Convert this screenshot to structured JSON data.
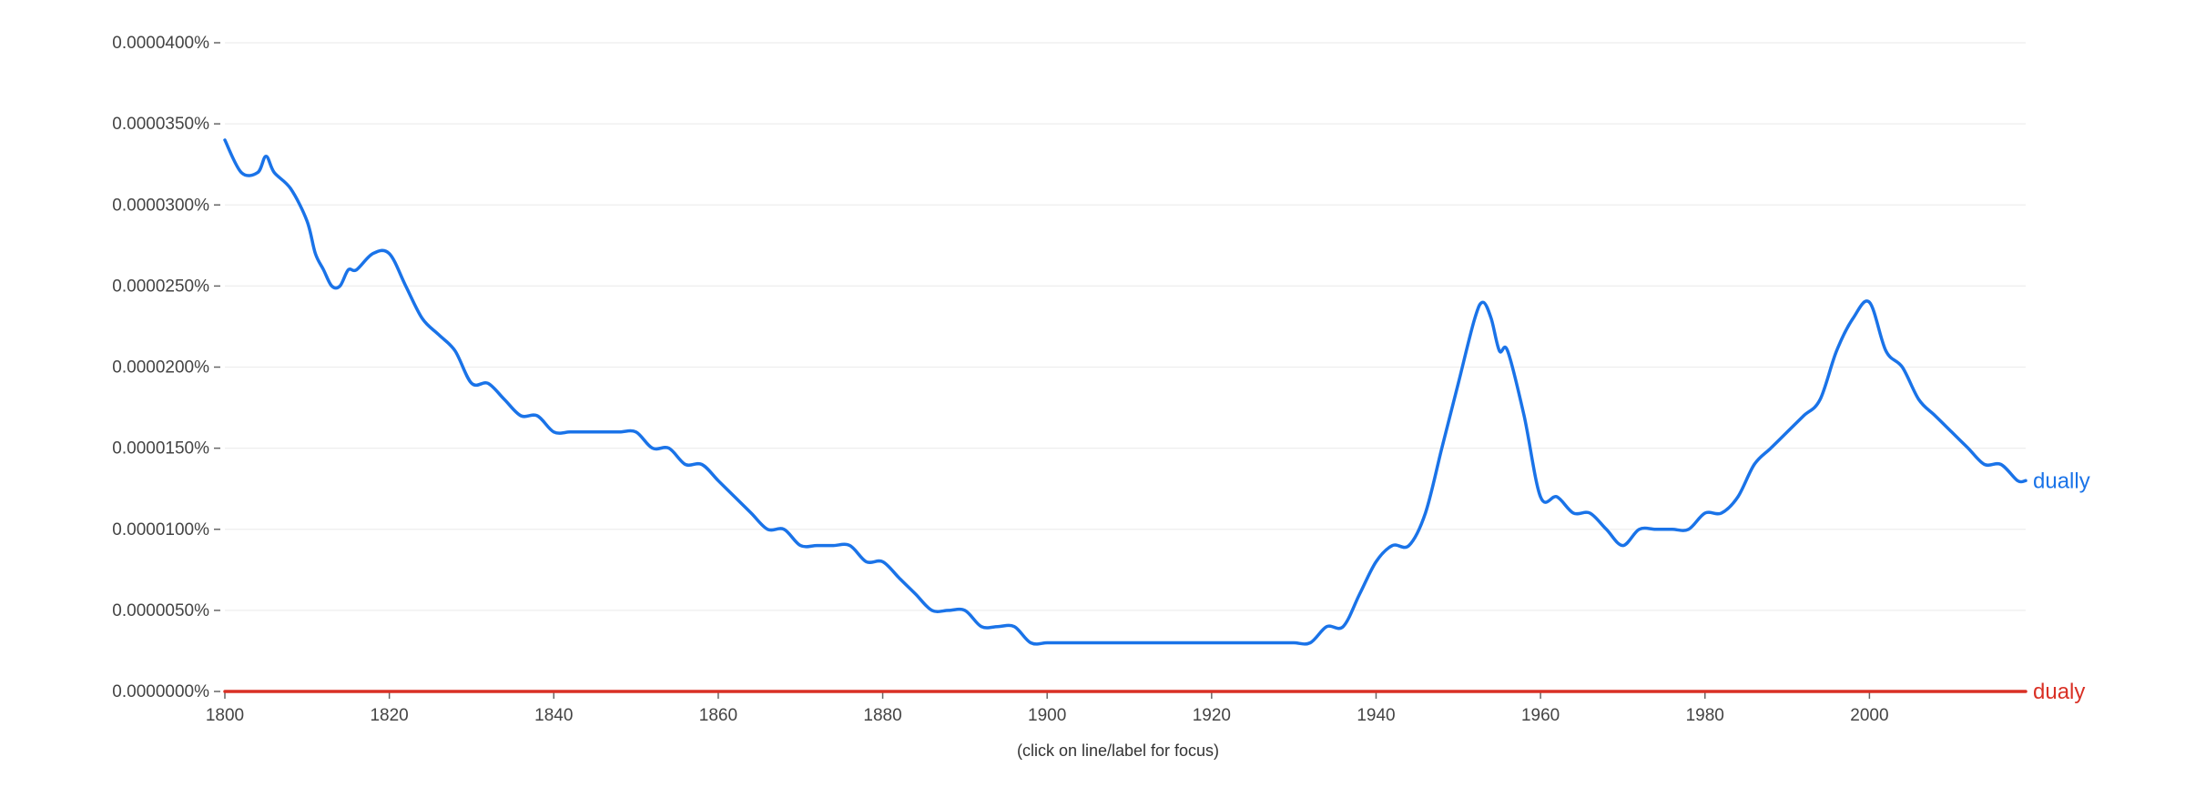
{
  "chart_data": {
    "type": "line",
    "x": [
      1800,
      1802,
      1804,
      1805,
      1806,
      1808,
      1810,
      1811,
      1812,
      1813,
      1814,
      1815,
      1816,
      1818,
      1820,
      1822,
      1824,
      1826,
      1828,
      1830,
      1832,
      1834,
      1836,
      1838,
      1840,
      1842,
      1844,
      1846,
      1848,
      1850,
      1852,
      1854,
      1856,
      1858,
      1860,
      1862,
      1864,
      1866,
      1868,
      1870,
      1872,
      1874,
      1876,
      1878,
      1880,
      1882,
      1884,
      1886,
      1888,
      1890,
      1892,
      1894,
      1896,
      1898,
      1900,
      1902,
      1904,
      1906,
      1908,
      1910,
      1912,
      1914,
      1916,
      1918,
      1920,
      1922,
      1924,
      1926,
      1928,
      1930,
      1932,
      1934,
      1936,
      1938,
      1940,
      1942,
      1944,
      1946,
      1948,
      1950,
      1952,
      1953,
      1954,
      1955,
      1956,
      1958,
      1960,
      1962,
      1964,
      1966,
      1968,
      1970,
      1972,
      1974,
      1976,
      1978,
      1980,
      1982,
      1984,
      1986,
      1988,
      1990,
      1992,
      1994,
      1996,
      1998,
      2000,
      2002,
      2004,
      2006,
      2008,
      2010,
      2012,
      2014,
      2016,
      2018,
      2019
    ],
    "series": [
      {
        "name": "dually",
        "color": "#1a73e8",
        "values": [
          3.4e-06,
          3.2e-06,
          3.2e-06,
          3.3e-06,
          3.2e-06,
          3.1e-06,
          2.9e-06,
          2.7e-06,
          2.6e-06,
          2.5e-06,
          2.5e-06,
          2.6e-06,
          2.6e-06,
          2.7e-06,
          2.7e-06,
          2.5e-06,
          2.3e-06,
          2.2e-06,
          2.1e-06,
          1.9e-06,
          1.9e-06,
          1.8e-06,
          1.7e-06,
          1.7e-06,
          1.6e-06,
          1.6e-06,
          1.6e-06,
          1.6e-06,
          1.6e-06,
          1.6e-06,
          1.5e-06,
          1.5e-06,
          1.4e-06,
          1.4e-06,
          1.3e-06,
          1.2e-06,
          1.1e-06,
          1e-06,
          1e-06,
          9e-07,
          9e-07,
          9e-07,
          9e-07,
          8e-07,
          8e-07,
          7e-07,
          6e-07,
          5e-07,
          5e-07,
          5e-07,
          4e-07,
          4e-07,
          4e-07,
          3e-07,
          3e-07,
          3e-07,
          3e-07,
          3e-07,
          3e-07,
          3e-07,
          3e-07,
          3e-07,
          3e-07,
          3e-07,
          3e-07,
          3e-07,
          3e-07,
          3e-07,
          3e-07,
          3e-07,
          3e-07,
          4e-07,
          4e-07,
          6e-07,
          8e-07,
          9e-07,
          9e-07,
          1.1e-06,
          1.5e-06,
          1.9e-06,
          2.3e-06,
          2.4e-06,
          2.3e-06,
          2.1e-06,
          2.1e-06,
          1.7e-06,
          1.2e-06,
          1.2e-06,
          1.1e-06,
          1.1e-06,
          1e-06,
          9e-07,
          1e-06,
          1e-06,
          1e-06,
          1e-06,
          1.1e-06,
          1.1e-06,
          1.2e-06,
          1.4e-06,
          1.5e-06,
          1.6e-06,
          1.7e-06,
          1.8e-06,
          2.1e-06,
          2.3e-06,
          2.4e-06,
          2.1e-06,
          2e-06,
          1.8e-06,
          1.7e-06,
          1.6e-06,
          1.5e-06,
          1.4e-06,
          1.4e-06,
          1.3e-06,
          1.3e-06
        ]
      },
      {
        "name": "dualy",
        "color": "#d93025",
        "values": [
          0.0,
          0.0,
          0.0,
          0.0,
          0.0,
          0.0,
          0.0,
          0.0,
          0.0,
          0.0,
          0.0,
          0.0,
          0.0,
          0.0,
          0.0,
          0.0,
          0.0,
          0.0,
          0.0,
          0.0,
          0.0,
          0.0,
          0.0,
          0.0,
          0.0,
          0.0,
          0.0,
          0.0,
          0.0,
          0.0,
          0.0,
          0.0,
          0.0,
          0.0,
          0.0,
          0.0,
          0.0,
          0.0,
          0.0,
          0.0,
          0.0,
          0.0,
          0.0,
          0.0,
          0.0,
          0.0,
          0.0,
          0.0,
          0.0,
          0.0,
          0.0,
          0.0,
          0.0,
          0.0,
          0.0,
          0.0,
          0.0,
          0.0,
          0.0,
          0.0,
          0.0,
          0.0,
          0.0,
          0.0,
          0.0,
          0.0,
          0.0,
          0.0,
          0.0,
          0.0,
          0.0,
          0.0,
          0.0,
          0.0,
          0.0,
          0.0,
          0.0,
          0.0,
          0.0,
          0.0,
          0.0,
          0.0,
          0.0,
          0.0,
          0.0,
          0.0,
          0.0,
          0.0,
          0.0,
          0.0,
          0.0,
          0.0,
          0.0,
          0.0,
          0.0,
          0.0,
          0.0,
          0.0,
          0.0,
          0.0,
          0.0,
          0.0,
          0.0,
          0.0,
          0.0,
          0.0,
          0.0,
          0.0,
          0.0,
          0.0,
          0.0,
          0.0,
          0.0,
          0.0,
          0.0,
          0.0,
          0.0
        ]
      }
    ],
    "y_ticks": [
      "0.0000000%",
      "0.0000050%",
      "0.0000100%",
      "0.0000150%",
      "0.0000200%",
      "0.0000250%",
      "0.0000300%",
      "0.0000350%",
      "0.0000400%"
    ],
    "x_ticks": [
      "1800",
      "1820",
      "1840",
      "1860",
      "1880",
      "1900",
      "1920",
      "1940",
      "1960",
      "1980",
      "2000"
    ],
    "xlim": [
      1800,
      2019
    ],
    "ylim": [
      0,
      4e-06
    ],
    "grid": true,
    "title": "",
    "xlabel": "",
    "ylabel": "",
    "note": "(click on line/label for focus)"
  }
}
